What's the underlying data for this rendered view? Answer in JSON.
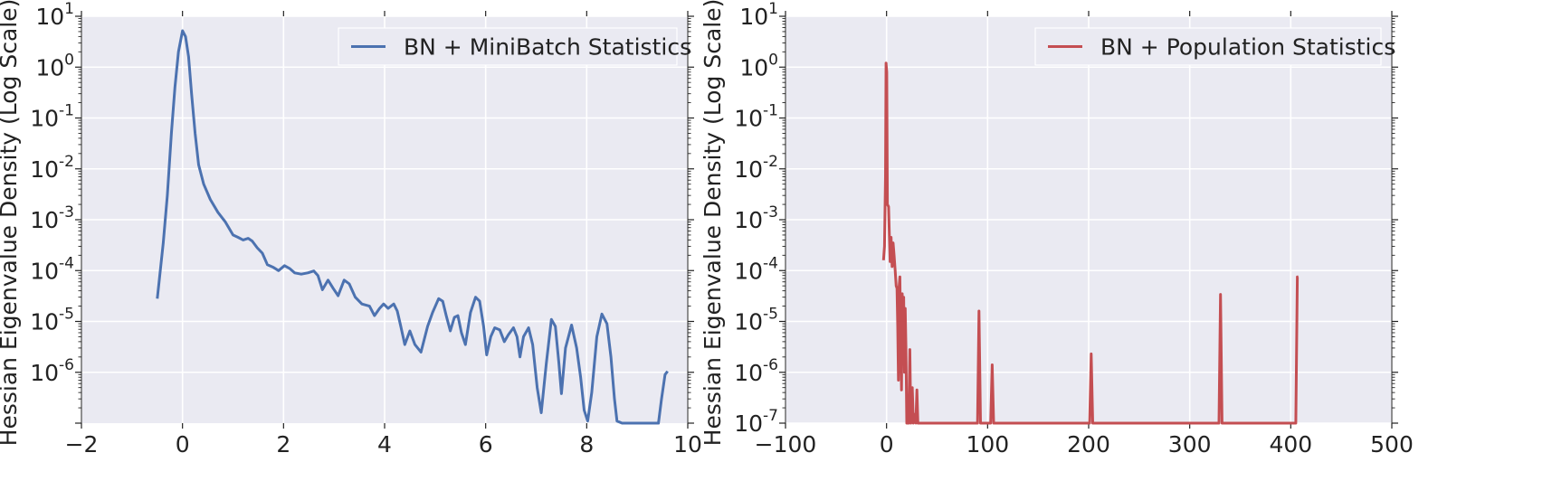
{
  "chart_data": [
    {
      "type": "line",
      "ylabel": "Hessian Eigenvalue Density (Log Scale)",
      "xlim": [
        -2,
        10
      ],
      "ylim_exp": [
        -7,
        1
      ],
      "y_scale": "log",
      "x_ticks": [
        "−2",
        "0",
        "2",
        "4",
        "6",
        "8",
        "10"
      ],
      "x_tick_values": [
        -2,
        0,
        2,
        4,
        6,
        8,
        10
      ],
      "y_ticks": [
        {
          "base": "10",
          "exp": "1",
          "value_exp": 1
        },
        {
          "base": "10",
          "exp": "0",
          "value_exp": 0
        },
        {
          "base": "10",
          "exp": "-1",
          "value_exp": -1
        },
        {
          "base": "10",
          "exp": "-2",
          "value_exp": -2
        },
        {
          "base": "10",
          "exp": "-3",
          "value_exp": -3
        },
        {
          "base": "10",
          "exp": "-4",
          "value_exp": -4
        },
        {
          "base": "10",
          "exp": "-5",
          "value_exp": -5
        },
        {
          "base": "10",
          "exp": "-6",
          "value_exp": -6
        }
      ],
      "grid": true,
      "legend_position": "top-right",
      "series": [
        {
          "name": "BN + MiniBatch Statistics",
          "color": "#4c72b0",
          "points": [
            [
              -0.5,
              2.8e-05
            ],
            [
              -0.38,
              0.00035
            ],
            [
              -0.3,
              0.003
            ],
            [
              -0.22,
              0.05
            ],
            [
              -0.15,
              0.4
            ],
            [
              -0.08,
              2.0
            ],
            [
              0.0,
              5.2
            ],
            [
              0.06,
              4.0
            ],
            [
              0.12,
              1.6
            ],
            [
              0.18,
              0.3
            ],
            [
              0.25,
              0.05
            ],
            [
              0.32,
              0.012
            ],
            [
              0.42,
              0.005
            ],
            [
              0.55,
              0.0025
            ],
            [
              0.7,
              0.0014
            ],
            [
              0.85,
              0.0009
            ],
            [
              1.0,
              0.0005
            ],
            [
              1.1,
              0.00045
            ],
            [
              1.2,
              0.0004
            ],
            [
              1.3,
              0.00043
            ],
            [
              1.38,
              0.00038
            ],
            [
              1.48,
              0.00028
            ],
            [
              1.58,
              0.00022
            ],
            [
              1.68,
              0.00013
            ],
            [
              1.8,
              0.000115
            ],
            [
              1.9,
              0.0001
            ],
            [
              2.02,
              0.000125
            ],
            [
              2.12,
              0.00011
            ],
            [
              2.22,
              9e-05
            ],
            [
              2.35,
              8.5e-05
            ],
            [
              2.48,
              9e-05
            ],
            [
              2.6,
              9.8e-05
            ],
            [
              2.68,
              8e-05
            ],
            [
              2.77,
              4.2e-05
            ],
            [
              2.88,
              6.5e-05
            ],
            [
              2.98,
              4.5e-05
            ],
            [
              3.08,
              3.2e-05
            ],
            [
              3.2,
              6.5e-05
            ],
            [
              3.3,
              5.5e-05
            ],
            [
              3.42,
              3e-05
            ],
            [
              3.55,
              2.2e-05
            ],
            [
              3.7,
              2e-05
            ],
            [
              3.8,
              1.3e-05
            ],
            [
              3.9,
              1.8e-05
            ],
            [
              3.98,
              2.2e-05
            ],
            [
              4.07,
              1.8e-05
            ],
            [
              4.18,
              2.2e-05
            ],
            [
              4.25,
              1.6e-05
            ],
            [
              4.32,
              8e-06
            ],
            [
              4.4,
              3.5e-06
            ],
            [
              4.5,
              6.5e-06
            ],
            [
              4.6,
              3.5e-06
            ],
            [
              4.72,
              2.5e-06
            ],
            [
              4.85,
              8e-06
            ],
            [
              4.95,
              1.5e-05
            ],
            [
              5.07,
              2.8e-05
            ],
            [
              5.15,
              2.5e-05
            ],
            [
              5.22,
              1.3e-05
            ],
            [
              5.3,
              6.5e-06
            ],
            [
              5.38,
              1.2e-05
            ],
            [
              5.45,
              1.3e-05
            ],
            [
              5.52,
              6e-06
            ],
            [
              5.6,
              3.5e-06
            ],
            [
              5.7,
              1.5e-05
            ],
            [
              5.8,
              3e-05
            ],
            [
              5.88,
              2.5e-05
            ],
            [
              5.96,
              8e-06
            ],
            [
              6.02,
              2.2e-06
            ],
            [
              6.1,
              5e-06
            ],
            [
              6.18,
              7.5e-06
            ],
            [
              6.28,
              6.8e-06
            ],
            [
              6.37,
              4e-06
            ],
            [
              6.45,
              5.5e-06
            ],
            [
              6.55,
              7.5e-06
            ],
            [
              6.62,
              5e-06
            ],
            [
              6.68,
              2e-06
            ],
            [
              6.75,
              5e-06
            ],
            [
              6.85,
              7.5e-06
            ],
            [
              6.93,
              3.5e-06
            ],
            [
              7.02,
              5e-07
            ],
            [
              7.1,
              1.6e-07
            ],
            [
              7.2,
              1.5e-06
            ],
            [
              7.3,
              1.1e-05
            ],
            [
              7.38,
              8e-06
            ],
            [
              7.45,
              1.5e-06
            ],
            [
              7.5,
              3.8e-07
            ],
            [
              7.58,
              3e-06
            ],
            [
              7.7,
              8.5e-06
            ],
            [
              7.8,
              3e-06
            ],
            [
              7.88,
              8e-07
            ],
            [
              7.95,
              1.8e-07
            ],
            [
              8.02,
              1.1e-07
            ],
            [
              8.1,
              4e-07
            ],
            [
              8.2,
              5e-06
            ],
            [
              8.3,
              1.4e-05
            ],
            [
              8.4,
              9e-06
            ],
            [
              8.48,
              2e-06
            ],
            [
              8.55,
              3e-07
            ],
            [
              8.6,
              1.1e-07
            ],
            [
              8.7,
              1e-07
            ],
            [
              9.0,
              1e-07
            ],
            [
              9.42,
              1e-07
            ],
            [
              9.48,
              3e-07
            ],
            [
              9.55,
              9e-07
            ],
            [
              9.6,
              1.05e-06
            ]
          ]
        }
      ]
    },
    {
      "type": "line",
      "ylabel": "Hessian Eigenvalue Density (Log Scale)",
      "xlim": [
        -100,
        500
      ],
      "ylim_exp": [
        -7,
        1
      ],
      "y_scale": "log",
      "x_ticks": [
        "−100",
        "0",
        "100",
        "200",
        "300",
        "400",
        "500"
      ],
      "x_tick_values": [
        -100,
        0,
        100,
        200,
        300,
        400,
        500
      ],
      "y_ticks": [
        {
          "base": "10",
          "exp": "1",
          "value_exp": 1
        },
        {
          "base": "10",
          "exp": "0",
          "value_exp": 0
        },
        {
          "base": "10",
          "exp": "-1",
          "value_exp": -1
        },
        {
          "base": "10",
          "exp": "-2",
          "value_exp": -2
        },
        {
          "base": "10",
          "exp": "-3",
          "value_exp": -3
        },
        {
          "base": "10",
          "exp": "-4",
          "value_exp": -4
        },
        {
          "base": "10",
          "exp": "-5",
          "value_exp": -5
        },
        {
          "base": "10",
          "exp": "-6",
          "value_exp": -6
        },
        {
          "base": "10",
          "exp": "-7",
          "value_exp": -7
        }
      ],
      "grid": true,
      "legend_position": "top-right",
      "series": [
        {
          "name": "BN + Population Statistics",
          "color": "#c44e52",
          "points": [
            [
              -3,
              0.00016
            ],
            [
              -2,
              0.0003
            ],
            [
              -1,
              0.007
            ],
            [
              -0.5,
              1.2
            ],
            [
              0.2,
              0.8
            ],
            [
              0.8,
              0.002
            ],
            [
              2,
              0.0018
            ],
            [
              3.5,
              0.00015
            ],
            [
              4.5,
              0.00045
            ],
            [
              5.5,
              0.00012
            ],
            [
              6.5,
              0.00035
            ],
            [
              7.5,
              0.0002
            ],
            [
              8.5,
              0.0001
            ],
            [
              9.5,
              5e-05
            ],
            [
              10.3,
              4.5e-05
            ],
            [
              11,
              8e-06
            ],
            [
              11.8,
              7e-07
            ],
            [
              12.5,
              5e-05
            ],
            [
              13.2,
              7.5e-05
            ],
            [
              14,
              4e-06
            ],
            [
              14.8,
              4.5e-07
            ],
            [
              15.5,
              3.5e-05
            ],
            [
              16.3,
              2e-06
            ],
            [
              17,
              3e-05
            ],
            [
              17.8,
              1e-06
            ],
            [
              18.5,
              1.8e-05
            ],
            [
              19.2,
              3e-06
            ],
            [
              20,
              1e-07
            ],
            [
              22,
              1e-07
            ],
            [
              23,
              2.8e-06
            ],
            [
              24,
              1e-07
            ],
            [
              25.5,
              5e-07
            ],
            [
              26.5,
              1e-07
            ],
            [
              28,
              1.5e-07
            ],
            [
              29,
              1e-07
            ],
            [
              30,
              4.5e-07
            ],
            [
              31,
              1e-07
            ],
            [
              90,
              1e-07
            ],
            [
              91.5,
              1.6e-05
            ],
            [
              93,
              1e-07
            ],
            [
              103,
              1e-07
            ],
            [
              104.5,
              1.4e-06
            ],
            [
              106,
              1e-07
            ],
            [
              201,
              1e-07
            ],
            [
              202.5,
              2.3e-06
            ],
            [
              204,
              1e-07
            ],
            [
              329,
              1e-07
            ],
            [
              330.5,
              3.4e-05
            ],
            [
              332,
              1e-07
            ],
            [
              405,
              1e-07
            ],
            [
              406.5,
              7.5e-05
            ],
            [
              407.5,
              7.5e-05
            ]
          ]
        }
      ]
    }
  ]
}
